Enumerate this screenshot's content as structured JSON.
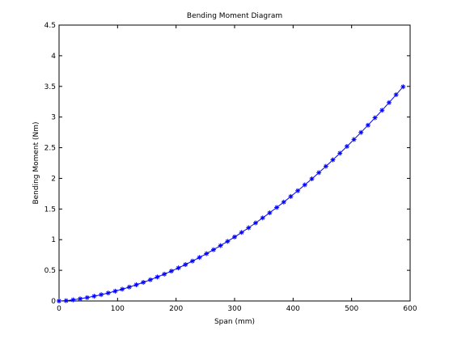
{
  "chart_data": {
    "type": "line",
    "title": "Bending Moment Diagram",
    "xlabel": "Span (mm)",
    "ylabel": "Bending Moment (Nm)",
    "xlim": [
      0,
      600
    ],
    "ylim": [
      0,
      4.5
    ],
    "xticks": [
      0,
      100,
      200,
      300,
      400,
      500,
      600
    ],
    "yticks": [
      0,
      0.5,
      1,
      1.5,
      2,
      2.5,
      3,
      3.5,
      4,
      4.5
    ],
    "xtick_labels": [
      "0",
      "100",
      "200",
      "300",
      "400",
      "500",
      "600"
    ],
    "ytick_labels": [
      "0",
      "0.5",
      "1",
      "1.5",
      "2",
      "2.5",
      "3",
      "3.5",
      "4",
      "4.5"
    ],
    "grid": false,
    "series": [
      {
        "color": "#0000ff",
        "marker": "asterisk",
        "x": [
          0,
          12,
          24,
          36,
          48,
          60,
          72,
          84,
          96,
          108,
          120,
          132,
          144,
          156,
          168,
          180,
          192,
          204,
          216,
          228,
          240,
          252,
          264,
          276,
          288,
          300,
          312,
          324,
          336,
          348,
          360,
          372,
          384,
          396,
          408,
          420,
          432,
          444,
          456,
          468,
          480,
          492,
          504,
          516,
          528,
          540,
          552,
          564,
          576,
          588
        ],
        "y": [
          0,
          0.005,
          0.018,
          0.035,
          0.055,
          0.078,
          0.103,
          0.13,
          0.16,
          0.192,
          0.227,
          0.264,
          0.304,
          0.346,
          0.391,
          0.438,
          0.487,
          0.539,
          0.594,
          0.651,
          0.71,
          0.772,
          0.836,
          0.903,
          0.972,
          1.044,
          1.118,
          1.194,
          1.273,
          1.355,
          1.438,
          1.525,
          1.613,
          1.704,
          1.798,
          1.894,
          1.992,
          2.093,
          2.196,
          2.302,
          2.41,
          2.521,
          2.634,
          2.749,
          2.867,
          2.988,
          3.111,
          3.236,
          3.364,
          3.494
        ]
      }
    ]
  }
}
